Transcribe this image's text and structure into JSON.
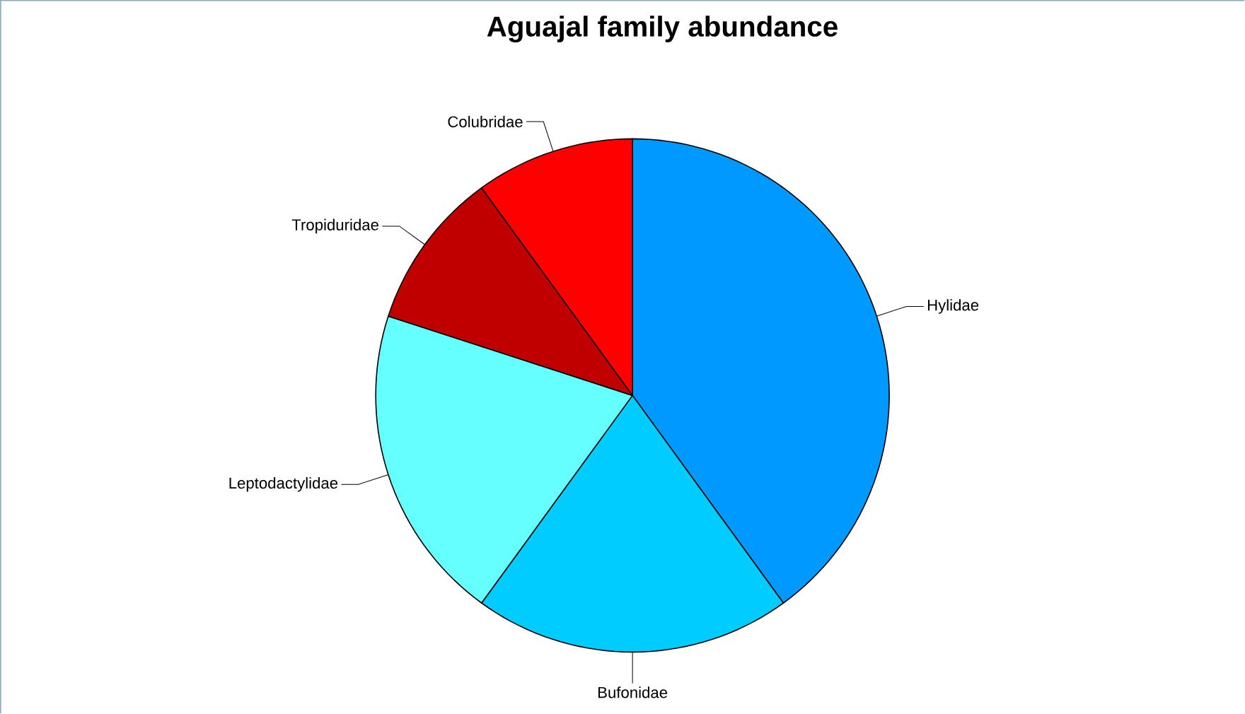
{
  "chart_data": {
    "type": "pie",
    "title": "Aguajal family abundance",
    "categories": [
      "Hylidae",
      "Bufonidae",
      "Leptodactylidae",
      "Tropiduridae",
      "Colubridae"
    ],
    "values": [
      40,
      20,
      20,
      10,
      10
    ],
    "colors": [
      "#0099ff",
      "#00ccff",
      "#66ffff",
      "#c00000",
      "#ff0000"
    ]
  }
}
